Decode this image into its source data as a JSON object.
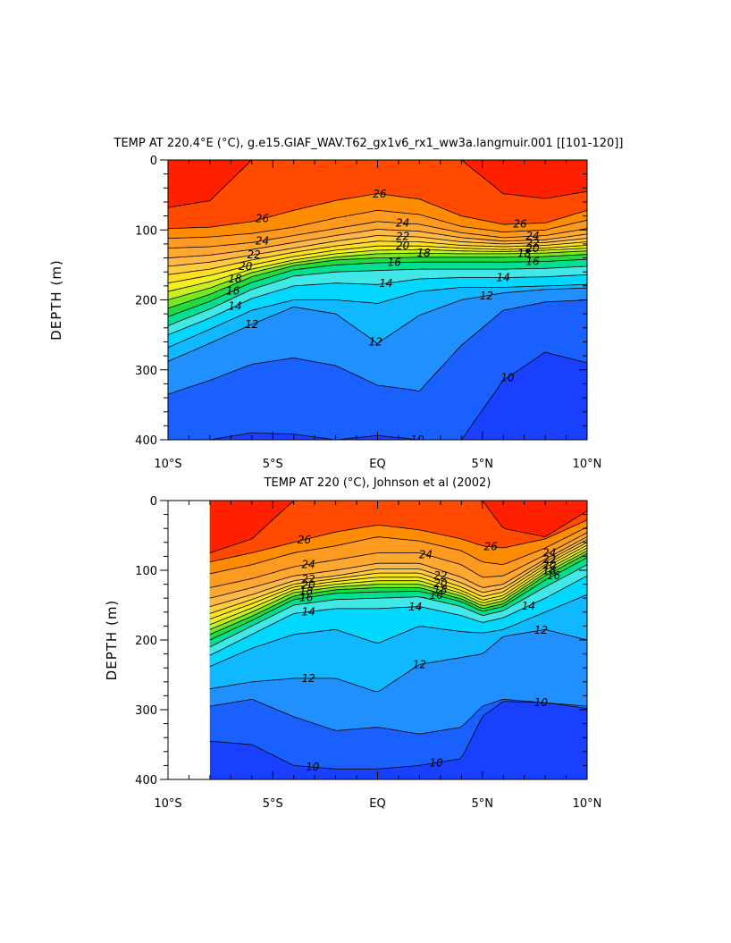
{
  "chart_data": [
    {
      "type": "contour",
      "title": "TEMP AT 220.4°E (°C), g.e15.GIAF_WAV.T62_gx1v6_rx1_ww3a.langmuir.001 [[101-120]]",
      "xlabel": "",
      "ylabel": "DEPTH (m)",
      "xlim": [
        -10,
        10
      ],
      "ylim": [
        400,
        0
      ],
      "x_ticks": [
        {
          "value": -10,
          "label": "10°S"
        },
        {
          "value": -5,
          "label": "5°S"
        },
        {
          "value": 0,
          "label": "EQ"
        },
        {
          "value": 5,
          "label": "5°N"
        },
        {
          "value": 10,
          "label": "10°N"
        }
      ],
      "y_ticks": [
        {
          "value": 0,
          "label": "0"
        },
        {
          "value": 100,
          "label": "100"
        },
        {
          "value": 200,
          "label": "200"
        },
        {
          "value": 300,
          "label": "300"
        },
        {
          "value": 400,
          "label": "400"
        }
      ],
      "x": [
        -10,
        -8,
        -6,
        -4,
        -2,
        0,
        2,
        4,
        6,
        8,
        10
      ],
      "isotherm_depths": [
        {
          "t": 27,
          "depths": [
            68,
            58,
            0,
            0,
            0,
            0,
            0,
            0,
            48,
            55,
            45
          ]
        },
        {
          "t": 26,
          "depths": [
            98,
            96,
            88,
            72,
            58,
            48,
            56,
            80,
            92,
            90,
            72
          ]
        },
        {
          "t": 25,
          "depths": [
            112,
            110,
            105,
            96,
            83,
            72,
            78,
            95,
            103,
            100,
            86
          ]
        },
        {
          "t": 24,
          "depths": [
            126,
            124,
            118,
            108,
            98,
            88,
            92,
            104,
            111,
            108,
            98
          ]
        },
        {
          "t": 23,
          "depths": [
            140,
            136,
            128,
            118,
            108,
            99,
            102,
            111,
            116,
            114,
            106
          ]
        },
        {
          "t": 22,
          "depths": [
            152,
            146,
            136,
            126,
            116,
            108,
            110,
            117,
            120,
            118,
            112
          ]
        },
        {
          "t": 21,
          "depths": [
            164,
            156,
            143,
            132,
            123,
            116,
            117,
            122,
            124,
            122,
            117
          ]
        },
        {
          "t": 20,
          "depths": [
            176,
            165,
            150,
            138,
            129,
            123,
            123,
            126,
            128,
            126,
            122
          ]
        },
        {
          "t": 19,
          "depths": [
            188,
            174,
            156,
            143,
            134,
            129,
            128,
            130,
            131,
            129,
            126
          ]
        },
        {
          "t": 18,
          "depths": [
            200,
            183,
            161,
            147,
            139,
            134,
            133,
            134,
            134,
            133,
            130
          ]
        },
        {
          "t": 17,
          "depths": [
            212,
            192,
            167,
            151,
            143,
            140,
            139,
            139,
            139,
            138,
            135
          ]
        },
        {
          "t": 16,
          "depths": [
            224,
            202,
            175,
            157,
            150,
            147,
            146,
            146,
            146,
            145,
            142
          ]
        },
        {
          "t": 15,
          "depths": [
            237,
            213,
            185,
            166,
            160,
            158,
            156,
            156,
            156,
            155,
            152
          ]
        },
        {
          "t": 14,
          "depths": [
            250,
            226,
            198,
            180,
            176,
            178,
            170,
            168,
            168,
            167,
            164
          ]
        },
        {
          "t": 13,
          "depths": [
            268,
            242,
            215,
            200,
            200,
            205,
            188,
            182,
            182,
            180,
            178
          ]
        },
        {
          "t": 12,
          "depths": [
            288,
            262,
            235,
            210,
            220,
            262,
            222,
            200,
            190,
            185,
            183
          ]
        },
        {
          "t": 11,
          "depths": [
            335,
            315,
            292,
            283,
            294,
            322,
            330,
            265,
            215,
            203,
            200
          ]
        },
        {
          "t": 10,
          "depths": [
            400,
            400,
            390,
            392,
            400,
            394,
            400,
            400,
            315,
            275,
            290
          ]
        }
      ],
      "contour_labels": [
        {
          "text": "26",
          "x": -5.5,
          "t": 26
        },
        {
          "text": "24",
          "x": -5.5,
          "t": 24
        },
        {
          "text": "22",
          "x": -5.9,
          "t": 22
        },
        {
          "text": "20",
          "x": -6.3,
          "t": 20
        },
        {
          "text": "18",
          "x": -6.8,
          "t": 18
        },
        {
          "text": "16",
          "x": -6.9,
          "t": 16
        },
        {
          "text": "14",
          "x": -6.8,
          "t": 14
        },
        {
          "text": "12",
          "x": -6.0,
          "t": 12
        },
        {
          "text": "26",
          "x": 0.1,
          "t": 26
        },
        {
          "text": "24",
          "x": 1.2,
          "t": 24
        },
        {
          "text": "22",
          "x": 1.2,
          "t": 22
        },
        {
          "text": "20",
          "x": 1.2,
          "t": 20
        },
        {
          "text": "18",
          "x": 2.2,
          "t": 18
        },
        {
          "text": "16",
          "x": 0.8,
          "t": 16
        },
        {
          "text": "14",
          "x": 0.4,
          "t": 14
        },
        {
          "text": "12",
          "x": -0.1,
          "t": 12
        },
        {
          "text": "26",
          "x": 6.8,
          "t": 26
        },
        {
          "text": "24",
          "x": 7.4,
          "t": 24
        },
        {
          "text": "22",
          "x": 7.4,
          "t": 22
        },
        {
          "text": "20",
          "x": 7.4,
          "t": 20
        },
        {
          "text": "18",
          "x": 7.0,
          "t": 18
        },
        {
          "text": "16",
          "x": 7.4,
          "t": 16
        },
        {
          "text": "14",
          "x": 6.0,
          "t": 14
        },
        {
          "text": "12",
          "x": 5.2,
          "t": 12
        },
        {
          "text": "10",
          "x": 6.2,
          "t": 10
        },
        {
          "text": "10",
          "x": 1.9,
          "t": 10
        }
      ]
    },
    {
      "type": "contour",
      "title": "TEMP AT 220 (°C), Johnson et al (2002)",
      "xlabel": "",
      "ylabel": "DEPTH (m)",
      "xlim": [
        -10,
        10
      ],
      "ylim": [
        400,
        0
      ],
      "data_xlim": [
        -8,
        10
      ],
      "x_ticks": [
        {
          "value": -10,
          "label": "10°S"
        },
        {
          "value": -5,
          "label": "5°S"
        },
        {
          "value": 0,
          "label": "EQ"
        },
        {
          "value": 5,
          "label": "5°N"
        },
        {
          "value": 10,
          "label": "10°N"
        }
      ],
      "y_ticks": [
        {
          "value": 0,
          "label": "0"
        },
        {
          "value": 100,
          "label": "100"
        },
        {
          "value": 200,
          "label": "200"
        },
        {
          "value": 300,
          "label": "300"
        },
        {
          "value": 400,
          "label": "400"
        }
      ],
      "x": [
        -8,
        -6,
        -4,
        -2,
        0,
        2,
        4,
        5,
        6,
        8,
        10
      ],
      "isotherm_depths": [
        {
          "t": 27,
          "depths": [
            75,
            55,
            0,
            0,
            0,
            0,
            0,
            0,
            40,
            52,
            15
          ]
        },
        {
          "t": 26,
          "depths": [
            88,
            75,
            60,
            45,
            35,
            42,
            55,
            65,
            68,
            55,
            28
          ]
        },
        {
          "t": 25,
          "depths": [
            105,
            92,
            75,
            65,
            52,
            58,
            72,
            88,
            92,
            68,
            38
          ]
        },
        {
          "t": 24,
          "depths": [
            125,
            112,
            95,
            85,
            75,
            75,
            92,
            110,
            108,
            78,
            46
          ]
        },
        {
          "t": 23,
          "depths": [
            140,
            125,
            108,
            100,
            90,
            90,
            110,
            125,
            120,
            84,
            52
          ]
        },
        {
          "t": 22,
          "depths": [
            152,
            135,
            115,
            108,
            98,
            98,
            118,
            132,
            126,
            88,
            56
          ]
        },
        {
          "t": 21,
          "depths": [
            162,
            142,
            120,
            112,
            104,
            104,
            124,
            138,
            131,
            92,
            60
          ]
        },
        {
          "t": 20,
          "depths": [
            170,
            148,
            124,
            116,
            110,
            110,
            129,
            143,
            136,
            96,
            64
          ]
        },
        {
          "t": 19,
          "depths": [
            178,
            154,
            128,
            120,
            115,
            115,
            133,
            147,
            140,
            100,
            68
          ]
        },
        {
          "t": 18,
          "depths": [
            185,
            160,
            132,
            124,
            120,
            120,
            137,
            151,
            144,
            104,
            72
          ]
        },
        {
          "t": 17,
          "depths": [
            192,
            166,
            137,
            128,
            125,
            125,
            141,
            155,
            148,
            108,
            76
          ]
        },
        {
          "t": 16,
          "depths": [
            200,
            172,
            142,
            133,
            131,
            130,
            145,
            159,
            152,
            114,
            82
          ]
        },
        {
          "t": 15,
          "depths": [
            210,
            180,
            150,
            142,
            140,
            138,
            152,
            165,
            158,
            124,
            92
          ]
        },
        {
          "t": 14,
          "depths": [
            222,
            192,
            162,
            155,
            155,
            152,
            165,
            175,
            168,
            140,
            108
          ]
        },
        {
          "t": 13,
          "depths": [
            238,
            212,
            192,
            185,
            205,
            180,
            188,
            190,
            185,
            160,
            135
          ]
        },
        {
          "t": 12,
          "depths": [
            270,
            260,
            255,
            255,
            275,
            235,
            225,
            220,
            195,
            185,
            200
          ]
        },
        {
          "t": 11,
          "depths": [
            295,
            285,
            310,
            330,
            325,
            335,
            325,
            295,
            285,
            290,
            298
          ]
        },
        {
          "t": 10,
          "depths": [
            345,
            350,
            380,
            385,
            385,
            380,
            370,
            310,
            288,
            290,
            295
          ]
        }
      ],
      "contour_labels": [
        {
          "text": "26",
          "x": -3.5,
          "t": 26
        },
        {
          "text": "24",
          "x": -3.3,
          "t": 24
        },
        {
          "text": "22",
          "x": -3.3,
          "t": 22
        },
        {
          "text": "20",
          "x": -3.3,
          "t": 20
        },
        {
          "text": "18",
          "x": -3.4,
          "t": 18
        },
        {
          "text": "16",
          "x": -3.4,
          "t": 16
        },
        {
          "text": "14",
          "x": -3.3,
          "t": 14
        },
        {
          "text": "12",
          "x": -3.3,
          "t": 12
        },
        {
          "text": "24",
          "x": 2.3,
          "t": 24
        },
        {
          "text": "22",
          "x": 3.0,
          "t": 22
        },
        {
          "text": "20",
          "x": 3.0,
          "t": 20
        },
        {
          "text": "18",
          "x": 3.0,
          "t": 18
        },
        {
          "text": "16",
          "x": 2.8,
          "t": 16
        },
        {
          "text": "14",
          "x": 1.8,
          "t": 14
        },
        {
          "text": "12",
          "x": 2.0,
          "t": 12
        },
        {
          "text": "26",
          "x": 5.4,
          "t": 26
        },
        {
          "text": "12",
          "x": 7.8,
          "t": 12
        },
        {
          "text": "14",
          "x": 7.2,
          "t": 14
        },
        {
          "text": "16",
          "x": 8.4,
          "t": 16
        },
        {
          "text": "18",
          "x": 8.2,
          "t": 18
        },
        {
          "text": "20",
          "x": 8.2,
          "t": 20
        },
        {
          "text": "22",
          "x": 8.2,
          "t": 22
        },
        {
          "text": "24",
          "x": 8.2,
          "t": 24
        },
        {
          "text": "10",
          "x": 7.8,
          "t": 10
        },
        {
          "text": "10",
          "x": 2.8,
          "t": 10
        },
        {
          "text": "10",
          "x": -3.1,
          "t": 10
        }
      ]
    }
  ],
  "colors": {
    "levels": {
      "warm": [
        "#ff2000",
        "#ff4a00",
        "#ff8c00",
        "#ff9a20",
        "#ffb040",
        "#ffc460",
        "#ffd838",
        "#ffee20",
        "#d8f020",
        "#a0f020",
        "#40e020",
        "#00e060",
        "#00e0b0",
        "#40e0f0",
        "#00d0ff",
        "#20b0ff",
        "#2080ff",
        "#1a50ff"
      ],
      "grey": "#000000"
    }
  }
}
